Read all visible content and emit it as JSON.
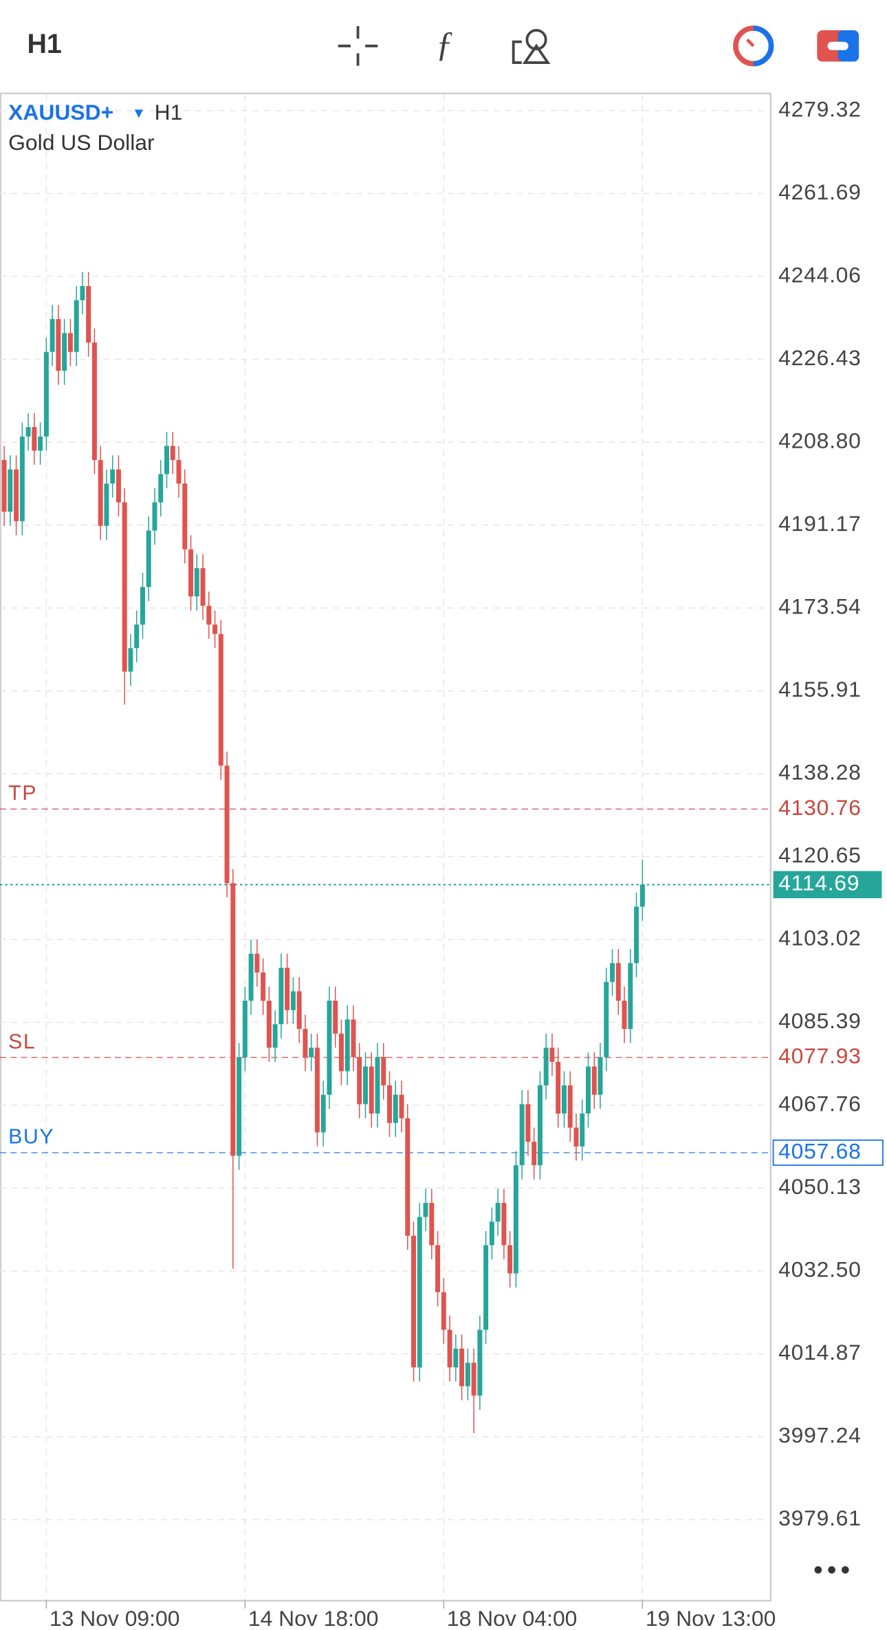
{
  "chart_data": {
    "type": "candlestick",
    "symbol": "XAUUSD+",
    "timeframe": "H1",
    "description": "Gold US Dollar",
    "up_color": "#26a69a",
    "down_color": "#e0534f",
    "grid": true,
    "ylim": [
      3962.5,
      4282.87
    ],
    "yticks": [
      4279.32,
      4261.69,
      4244.06,
      4226.43,
      {
        "value": 4208.8,
        "label": "4208.80"
      },
      4191.17,
      4173.54,
      4155.91,
      4138.28,
      4120.65,
      4103.02,
      4085.39,
      4067.76,
      4050.13,
      {
        "value": 4032.5,
        "label": "4032.50"
      },
      4014.87,
      3997.24,
      3979.61
    ],
    "categories": [
      null,
      null,
      null,
      null,
      null,
      null,
      null,
      "13 Nov 09:00",
      null,
      null,
      null,
      null,
      null,
      null,
      null,
      null,
      null,
      null,
      null,
      null,
      null,
      null,
      null,
      null,
      null,
      null,
      null,
      null,
      null,
      null,
      null,
      null,
      null,
      null,
      null,
      null,
      null,
      null,
      null,
      null,
      "14 Nov 18:00",
      null,
      null,
      null,
      null,
      null,
      null,
      null,
      null,
      null,
      null,
      null,
      null,
      null,
      null,
      null,
      null,
      null,
      null,
      null,
      null,
      null,
      null,
      null,
      null,
      null,
      null,
      null,
      null,
      null,
      null,
      null,
      null,
      "18 Nov 04:00",
      null,
      null,
      null,
      null,
      null,
      null,
      null,
      null,
      null,
      null,
      null,
      null,
      null,
      null,
      null,
      null,
      null,
      null,
      null,
      null,
      null,
      null,
      null,
      null,
      null,
      null,
      null,
      null,
      null,
      null,
      null,
      null,
      "19 Nov 13:00"
    ],
    "open": [
      4205,
      4194,
      4203,
      4192,
      4210,
      4212,
      4207,
      4210,
      4228,
      4235,
      4224,
      4232,
      4228,
      4239,
      4242,
      4230,
      4205,
      4191,
      4200,
      4203,
      4196,
      4160,
      4165,
      4170,
      4178,
      4190,
      4196,
      4202,
      4208,
      4205,
      4200,
      4186,
      4176,
      4182,
      4174,
      4170,
      4168,
      4140,
      4115,
      4057,
      4078,
      4090,
      4100,
      4096,
      4090,
      4080,
      4085,
      4097,
      4088,
      4092,
      4084,
      4078,
      4080,
      4062,
      4070,
      4090,
      4083,
      4075,
      4086,
      4078,
      4068,
      4076,
      4066,
      4078,
      4072,
      4064,
      4070,
      4065,
      4040,
      4012,
      4044,
      4047,
      4038,
      4028,
      4020,
      4012,
      4016,
      4008,
      4013,
      4006,
      4020,
      4038,
      4043,
      4047,
      4038,
      4032,
      4055,
      4068,
      4060,
      4055,
      4072,
      4080,
      4077,
      4066,
      4072,
      4063,
      4059,
      4066,
      4076,
      4070,
      4078,
      4094,
      4098,
      4090,
      4084,
      4098,
      4110
    ],
    "high": [
      4208,
      4206,
      4206,
      4213,
      4215,
      4215,
      4213,
      4231,
      4238,
      4238,
      4235,
      4235,
      4242,
      4245,
      4245,
      4233,
      4208,
      4203,
      4206,
      4206,
      4199,
      4168,
      4173,
      4181,
      4193,
      4199,
      4205,
      4211,
      4211,
      4208,
      4203,
      4189,
      4185,
      4185,
      4177,
      4173,
      4171,
      4143,
      4118,
      4081,
      4093,
      4103,
      4103,
      4099,
      4093,
      4088,
      4100,
      4100,
      4095,
      4095,
      4087,
      4083,
      4083,
      4073,
      4093,
      4093,
      4086,
      4089,
      4089,
      4081,
      4079,
      4079,
      4081,
      4081,
      4075,
      4073,
      4073,
      4068,
      4043,
      4047,
      4050,
      4050,
      4041,
      4031,
      4023,
      4019,
      4019,
      4016,
      4016,
      4023,
      4041,
      4046,
      4050,
      4050,
      4041,
      4058,
      4071,
      4071,
      4063,
      4075,
      4083,
      4083,
      4080,
      4075,
      4075,
      4066,
      4069,
      4079,
      4079,
      4081,
      4097,
      4101,
      4101,
      4093,
      4101,
      4113,
      4120
    ],
    "low": [
      4191,
      4191,
      4189,
      4189,
      4207,
      4204,
      4204,
      4207,
      4225,
      4221,
      4221,
      4225,
      4225,
      4236,
      4227,
      4202,
      4188,
      4188,
      4197,
      4193,
      4153,
      4157,
      4162,
      4167,
      4175,
      4187,
      4193,
      4199,
      4202,
      4197,
      4183,
      4173,
      4173,
      4171,
      4167,
      4165,
      4137,
      4112,
      4033,
      4054,
      4075,
      4087,
      4093,
      4087,
      4077,
      4077,
      4082,
      4085,
      4085,
      4081,
      4075,
      4075,
      4059,
      4059,
      4067,
      4080,
      4072,
      4072,
      4075,
      4065,
      4065,
      4063,
      4063,
      4069,
      4061,
      4061,
      4062,
      4037,
      4009,
      4009,
      4041,
      4035,
      4025,
      4017,
      4009,
      4009,
      4005,
      4005,
      3998,
      4003,
      4017,
      4035,
      4040,
      4035,
      4029,
      4029,
      4052,
      4057,
      4052,
      4052,
      4069,
      4074,
      4063,
      4063,
      4060,
      4056,
      4056,
      4063,
      4067,
      4067,
      4075,
      4091,
      4087,
      4081,
      4081,
      4095,
      4107
    ],
    "close": [
      4194,
      4203,
      4192,
      4210,
      4212,
      4207,
      4210,
      4228,
      4235,
      4224,
      4232,
      4228,
      4239,
      4242,
      4230,
      4205,
      4191,
      4200,
      4203,
      4196,
      4160,
      4165,
      4170,
      4178,
      4190,
      4196,
      4202,
      4208,
      4205,
      4200,
      4186,
      4176,
      4182,
      4174,
      4170,
      4168,
      4140,
      4115,
      4057,
      4078,
      4090,
      4100,
      4096,
      4090,
      4080,
      4085,
      4097,
      4088,
      4092,
      4084,
      4078,
      4080,
      4062,
      4070,
      4090,
      4083,
      4075,
      4086,
      4078,
      4068,
      4076,
      4066,
      4078,
      4072,
      4064,
      4070,
      4065,
      4040,
      4012,
      4044,
      4047,
      4038,
      4028,
      4020,
      4012,
      4016,
      4008,
      4013,
      4006,
      4020,
      4038,
      4043,
      4047,
      4038,
      4032,
      4055,
      4068,
      4060,
      4055,
      4072,
      4080,
      4077,
      4066,
      4072,
      4063,
      4059,
      4066,
      4076,
      4070,
      4078,
      4094,
      4098,
      4090,
      4084,
      4098,
      4110,
      4114.69
    ],
    "last_price": 4114.69,
    "last_price_color": "#26a69a",
    "lines": [
      {
        "label": "TP",
        "value": 4130.76,
        "color": "#c9463d"
      },
      {
        "label": "SL",
        "value": 4077.93,
        "color": "#c9463d"
      },
      {
        "label": "BUY",
        "value": 4057.68,
        "color": "#1a73e8"
      }
    ]
  }
}
